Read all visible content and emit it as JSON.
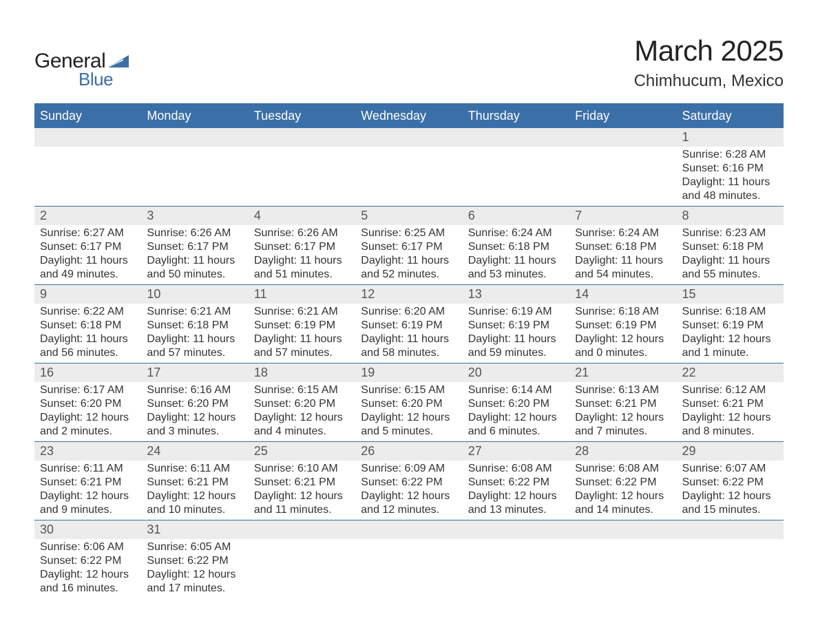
{
  "logo": {
    "general": "General",
    "blue": "Blue"
  },
  "title": {
    "month": "March 2025",
    "location": "Chimhucum, Mexico"
  },
  "colors": {
    "header_bg": "#3a6fa8",
    "header_text": "#ffffff",
    "daynum_bg": "#ececec",
    "text": "#333333",
    "logo_blue": "#3a6fa8"
  },
  "day_headers": [
    "Sunday",
    "Monday",
    "Tuesday",
    "Wednesday",
    "Thursday",
    "Friday",
    "Saturday"
  ],
  "weeks": [
    [
      {
        "n": "",
        "sunrise": "",
        "sunset": "",
        "daylight1": "",
        "daylight2": ""
      },
      {
        "n": "",
        "sunrise": "",
        "sunset": "",
        "daylight1": "",
        "daylight2": ""
      },
      {
        "n": "",
        "sunrise": "",
        "sunset": "",
        "daylight1": "",
        "daylight2": ""
      },
      {
        "n": "",
        "sunrise": "",
        "sunset": "",
        "daylight1": "",
        "daylight2": ""
      },
      {
        "n": "",
        "sunrise": "",
        "sunset": "",
        "daylight1": "",
        "daylight2": ""
      },
      {
        "n": "",
        "sunrise": "",
        "sunset": "",
        "daylight1": "",
        "daylight2": ""
      },
      {
        "n": "1",
        "sunrise": "Sunrise: 6:28 AM",
        "sunset": "Sunset: 6:16 PM",
        "daylight1": "Daylight: 11 hours",
        "daylight2": "and 48 minutes."
      }
    ],
    [
      {
        "n": "2",
        "sunrise": "Sunrise: 6:27 AM",
        "sunset": "Sunset: 6:17 PM",
        "daylight1": "Daylight: 11 hours",
        "daylight2": "and 49 minutes."
      },
      {
        "n": "3",
        "sunrise": "Sunrise: 6:26 AM",
        "sunset": "Sunset: 6:17 PM",
        "daylight1": "Daylight: 11 hours",
        "daylight2": "and 50 minutes."
      },
      {
        "n": "4",
        "sunrise": "Sunrise: 6:26 AM",
        "sunset": "Sunset: 6:17 PM",
        "daylight1": "Daylight: 11 hours",
        "daylight2": "and 51 minutes."
      },
      {
        "n": "5",
        "sunrise": "Sunrise: 6:25 AM",
        "sunset": "Sunset: 6:17 PM",
        "daylight1": "Daylight: 11 hours",
        "daylight2": "and 52 minutes."
      },
      {
        "n": "6",
        "sunrise": "Sunrise: 6:24 AM",
        "sunset": "Sunset: 6:18 PM",
        "daylight1": "Daylight: 11 hours",
        "daylight2": "and 53 minutes."
      },
      {
        "n": "7",
        "sunrise": "Sunrise: 6:24 AM",
        "sunset": "Sunset: 6:18 PM",
        "daylight1": "Daylight: 11 hours",
        "daylight2": "and 54 minutes."
      },
      {
        "n": "8",
        "sunrise": "Sunrise: 6:23 AM",
        "sunset": "Sunset: 6:18 PM",
        "daylight1": "Daylight: 11 hours",
        "daylight2": "and 55 minutes."
      }
    ],
    [
      {
        "n": "9",
        "sunrise": "Sunrise: 6:22 AM",
        "sunset": "Sunset: 6:18 PM",
        "daylight1": "Daylight: 11 hours",
        "daylight2": "and 56 minutes."
      },
      {
        "n": "10",
        "sunrise": "Sunrise: 6:21 AM",
        "sunset": "Sunset: 6:18 PM",
        "daylight1": "Daylight: 11 hours",
        "daylight2": "and 57 minutes."
      },
      {
        "n": "11",
        "sunrise": "Sunrise: 6:21 AM",
        "sunset": "Sunset: 6:19 PM",
        "daylight1": "Daylight: 11 hours",
        "daylight2": "and 57 minutes."
      },
      {
        "n": "12",
        "sunrise": "Sunrise: 6:20 AM",
        "sunset": "Sunset: 6:19 PM",
        "daylight1": "Daylight: 11 hours",
        "daylight2": "and 58 minutes."
      },
      {
        "n": "13",
        "sunrise": "Sunrise: 6:19 AM",
        "sunset": "Sunset: 6:19 PM",
        "daylight1": "Daylight: 11 hours",
        "daylight2": "and 59 minutes."
      },
      {
        "n": "14",
        "sunrise": "Sunrise: 6:18 AM",
        "sunset": "Sunset: 6:19 PM",
        "daylight1": "Daylight: 12 hours",
        "daylight2": "and 0 minutes."
      },
      {
        "n": "15",
        "sunrise": "Sunrise: 6:18 AM",
        "sunset": "Sunset: 6:19 PM",
        "daylight1": "Daylight: 12 hours",
        "daylight2": "and 1 minute."
      }
    ],
    [
      {
        "n": "16",
        "sunrise": "Sunrise: 6:17 AM",
        "sunset": "Sunset: 6:20 PM",
        "daylight1": "Daylight: 12 hours",
        "daylight2": "and 2 minutes."
      },
      {
        "n": "17",
        "sunrise": "Sunrise: 6:16 AM",
        "sunset": "Sunset: 6:20 PM",
        "daylight1": "Daylight: 12 hours",
        "daylight2": "and 3 minutes."
      },
      {
        "n": "18",
        "sunrise": "Sunrise: 6:15 AM",
        "sunset": "Sunset: 6:20 PM",
        "daylight1": "Daylight: 12 hours",
        "daylight2": "and 4 minutes."
      },
      {
        "n": "19",
        "sunrise": "Sunrise: 6:15 AM",
        "sunset": "Sunset: 6:20 PM",
        "daylight1": "Daylight: 12 hours",
        "daylight2": "and 5 minutes."
      },
      {
        "n": "20",
        "sunrise": "Sunrise: 6:14 AM",
        "sunset": "Sunset: 6:20 PM",
        "daylight1": "Daylight: 12 hours",
        "daylight2": "and 6 minutes."
      },
      {
        "n": "21",
        "sunrise": "Sunrise: 6:13 AM",
        "sunset": "Sunset: 6:21 PM",
        "daylight1": "Daylight: 12 hours",
        "daylight2": "and 7 minutes."
      },
      {
        "n": "22",
        "sunrise": "Sunrise: 6:12 AM",
        "sunset": "Sunset: 6:21 PM",
        "daylight1": "Daylight: 12 hours",
        "daylight2": "and 8 minutes."
      }
    ],
    [
      {
        "n": "23",
        "sunrise": "Sunrise: 6:11 AM",
        "sunset": "Sunset: 6:21 PM",
        "daylight1": "Daylight: 12 hours",
        "daylight2": "and 9 minutes."
      },
      {
        "n": "24",
        "sunrise": "Sunrise: 6:11 AM",
        "sunset": "Sunset: 6:21 PM",
        "daylight1": "Daylight: 12 hours",
        "daylight2": "and 10 minutes."
      },
      {
        "n": "25",
        "sunrise": "Sunrise: 6:10 AM",
        "sunset": "Sunset: 6:21 PM",
        "daylight1": "Daylight: 12 hours",
        "daylight2": "and 11 minutes."
      },
      {
        "n": "26",
        "sunrise": "Sunrise: 6:09 AM",
        "sunset": "Sunset: 6:22 PM",
        "daylight1": "Daylight: 12 hours",
        "daylight2": "and 12 minutes."
      },
      {
        "n": "27",
        "sunrise": "Sunrise: 6:08 AM",
        "sunset": "Sunset: 6:22 PM",
        "daylight1": "Daylight: 12 hours",
        "daylight2": "and 13 minutes."
      },
      {
        "n": "28",
        "sunrise": "Sunrise: 6:08 AM",
        "sunset": "Sunset: 6:22 PM",
        "daylight1": "Daylight: 12 hours",
        "daylight2": "and 14 minutes."
      },
      {
        "n": "29",
        "sunrise": "Sunrise: 6:07 AM",
        "sunset": "Sunset: 6:22 PM",
        "daylight1": "Daylight: 12 hours",
        "daylight2": "and 15 minutes."
      }
    ],
    [
      {
        "n": "30",
        "sunrise": "Sunrise: 6:06 AM",
        "sunset": "Sunset: 6:22 PM",
        "daylight1": "Daylight: 12 hours",
        "daylight2": "and 16 minutes."
      },
      {
        "n": "31",
        "sunrise": "Sunrise: 6:05 AM",
        "sunset": "Sunset: 6:22 PM",
        "daylight1": "Daylight: 12 hours",
        "daylight2": "and 17 minutes."
      },
      {
        "n": "",
        "sunrise": "",
        "sunset": "",
        "daylight1": "",
        "daylight2": ""
      },
      {
        "n": "",
        "sunrise": "",
        "sunset": "",
        "daylight1": "",
        "daylight2": ""
      },
      {
        "n": "",
        "sunrise": "",
        "sunset": "",
        "daylight1": "",
        "daylight2": ""
      },
      {
        "n": "",
        "sunrise": "",
        "sunset": "",
        "daylight1": "",
        "daylight2": ""
      },
      {
        "n": "",
        "sunrise": "",
        "sunset": "",
        "daylight1": "",
        "daylight2": ""
      }
    ]
  ]
}
